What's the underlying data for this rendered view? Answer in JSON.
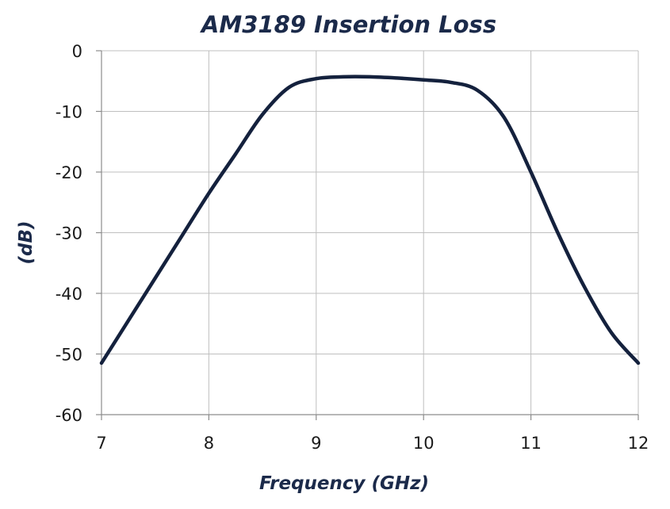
{
  "chart_data": {
    "type": "line",
    "title": "AM3189 Insertion Loss",
    "xlabel": "Frequency (GHz)",
    "ylabel": "(dB)",
    "xlim": [
      7,
      12
    ],
    "ylim": [
      -60,
      0
    ],
    "xticks": [
      "7",
      "8",
      "9",
      "10",
      "11",
      "12"
    ],
    "yticks": [
      "0",
      "-10",
      "-20",
      "-30",
      "-40",
      "-50",
      "-60"
    ],
    "grid": true,
    "line_color": "#14213d",
    "series": [
      {
        "x": [
          7.0,
          7.25,
          7.5,
          7.75,
          8.0,
          8.25,
          8.5,
          8.75,
          9.0,
          9.25,
          9.5,
          9.75,
          10.0,
          10.25,
          10.5,
          10.75,
          11.0,
          11.25,
          11.5,
          11.75,
          12.0
        ],
        "y": [
          -51.5,
          -44.5,
          -37.5,
          -30.5,
          -23.5,
          -17.0,
          -10.5,
          -6.0,
          -4.6,
          -4.3,
          -4.3,
          -4.5,
          -4.8,
          -5.2,
          -6.5,
          -11.0,
          -20.0,
          -30.0,
          -39.0,
          -46.5,
          -51.5
        ]
      }
    ]
  }
}
